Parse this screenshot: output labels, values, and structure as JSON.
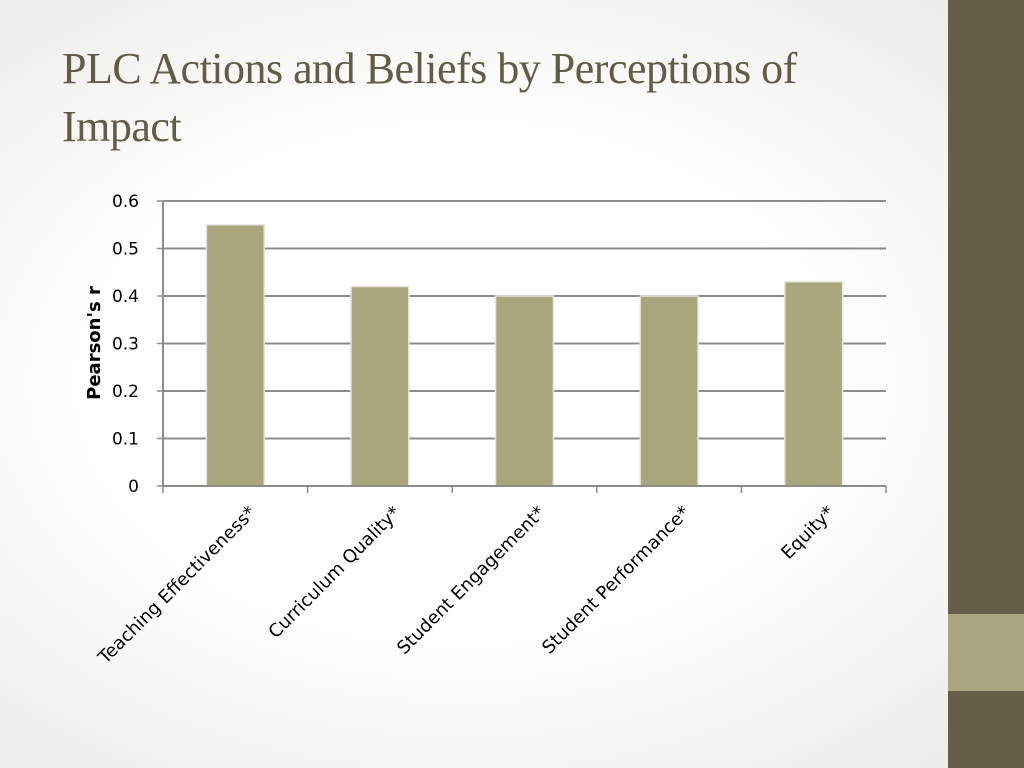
{
  "slide": {
    "title": "PLC Actions and Beliefs by Perceptions of Impact"
  },
  "colors": {
    "title": "#625b45",
    "side_bar": "#665e49",
    "side_accent": "#aba57f",
    "bar_fill": "#a9a67e",
    "grid": "#8c8c8c"
  },
  "chart_data": {
    "type": "bar",
    "title": "",
    "xlabel": "",
    "ylabel": "Pearson's r",
    "categories": [
      "Teaching Effectiveness*",
      "Curriculum Quality*",
      "Student Engagement*",
      "Student Performance*",
      "Equity*"
    ],
    "values": [
      0.55,
      0.42,
      0.4,
      0.4,
      0.43
    ],
    "ylim": [
      0,
      0.6
    ],
    "yticks": [
      "0",
      "0.1",
      "0.2",
      "0.3",
      "0.4",
      "0.5",
      "0.6"
    ],
    "grid": true,
    "legend": "none"
  }
}
